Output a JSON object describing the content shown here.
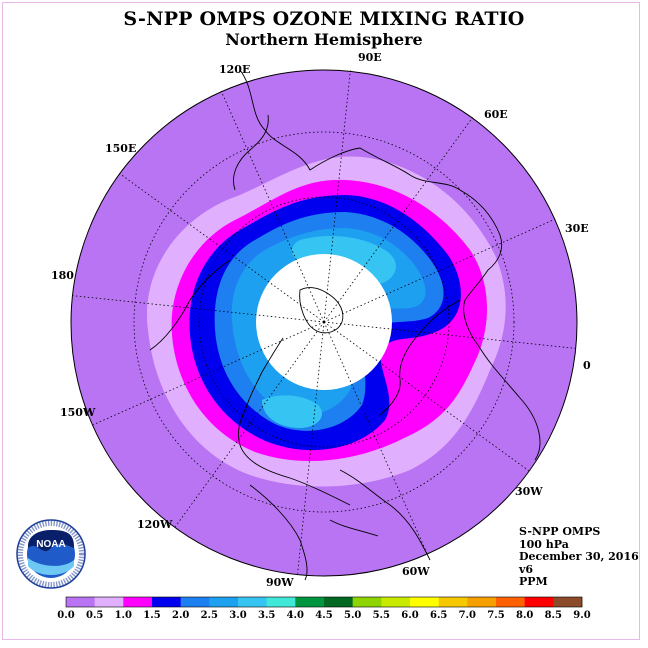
{
  "title": "S-NPP OMPS OZONE MIXING RATIO",
  "subtitle": "Northern Hemisphere",
  "longitude_labels": [
    "90E",
    "60E",
    "30E",
    "0",
    "30W",
    "60W",
    "90W",
    "120W",
    "150W",
    "180",
    "150E",
    "120E"
  ],
  "info": {
    "instrument": "S-NPP OMPS",
    "level": "100 hPa",
    "date": "December 30, 2016",
    "version": "v6",
    "units": "PPM"
  },
  "logo": {
    "text": "NOAA",
    "ring_text": "NATIONAL OCEANIC AND ATMOSPHERIC ADMINISTRATION · U.S. DEPARTMENT OF COMMERCE"
  },
  "colorbar": {
    "ticks": [
      "0.0",
      "0.5",
      "1.0",
      "1.5",
      "2.0",
      "2.5",
      "3.0",
      "3.5",
      "4.0",
      "4.5",
      "5.0",
      "5.5",
      "6.0",
      "6.5",
      "7.0",
      "7.5",
      "8.0",
      "8.5",
      "9.0"
    ],
    "colors": [
      "#b874f2",
      "#e0b0ff",
      "#ff00ff",
      "#0000ee",
      "#1e7ff0",
      "#1ea0f0",
      "#36c5f2",
      "#40e8d8",
      "#009640",
      "#006820",
      "#8ed400",
      "#c8ea00",
      "#ffff00",
      "#f5c800",
      "#f5a000",
      "#ff6000",
      "#ff0000",
      "#8b4a2a"
    ]
  },
  "colors": {
    "background_field": "#b874f2",
    "missing_polar_cap": "#ffffff"
  }
}
